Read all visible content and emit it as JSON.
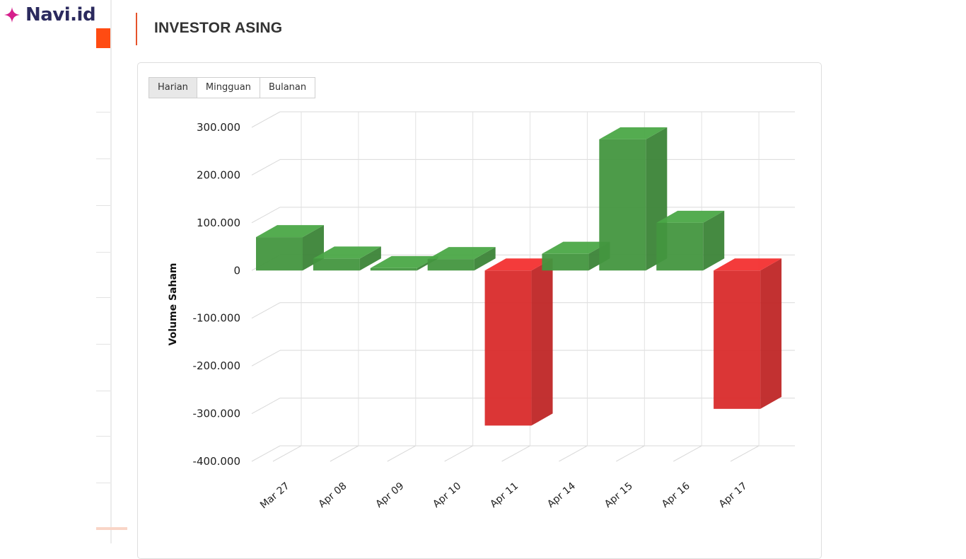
{
  "brand": {
    "name": "Navi.id",
    "icon": "sparkle-icon",
    "color": "#2b2a5e",
    "icon_color": "#d61f8c"
  },
  "section": {
    "title": "INVESTOR ASING",
    "accent": "#e6532b"
  },
  "tabs": [
    {
      "label": "Harian",
      "active": true
    },
    {
      "label": "Mingguan",
      "active": false
    },
    {
      "label": "Bulanan",
      "active": false
    }
  ],
  "chart_data": {
    "type": "bar",
    "style": "3d-column",
    "categories": [
      "Mar 27",
      "Apr 08",
      "Apr 09",
      "Apr 10",
      "Apr 11",
      "Apr 14",
      "Apr 15",
      "Apr 16",
      "Apr 17"
    ],
    "values": [
      70000,
      25000,
      5000,
      24000,
      -325000,
      35000,
      275000,
      100000,
      -290000
    ],
    "ylabel": "Volume Saham",
    "ylim": [
      -400000,
      300000
    ],
    "yticks": [
      300000,
      200000,
      100000,
      0,
      -100000,
      -200000,
      -300000,
      -400000
    ],
    "ytick_labels": [
      "300.000",
      "200.000",
      "100.000",
      "0",
      "-100.000",
      "-200.000",
      "-300.000",
      "-400.000"
    ],
    "grid": true,
    "colors": {
      "positive": "#43963f",
      "negative": "#d92b2b"
    }
  }
}
